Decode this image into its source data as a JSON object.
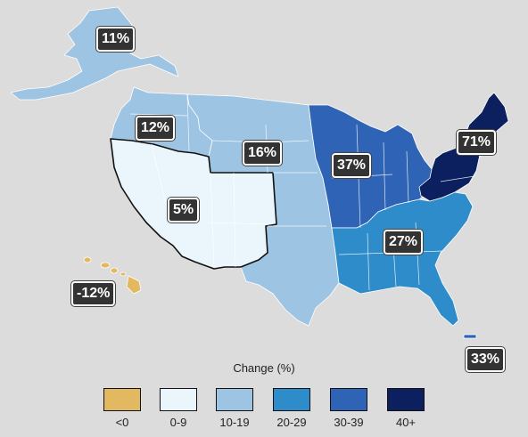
{
  "map": {
    "regions": [
      {
        "id": "alaska",
        "change_label": "11%",
        "color": "#9ec4e4"
      },
      {
        "id": "northwest",
        "change_label": "12%",
        "color": "#9ec4e4"
      },
      {
        "id": "great-plains",
        "change_label": "16%",
        "color": "#9ec4e4"
      },
      {
        "id": "southwest",
        "change_label": "5%",
        "color": "#eaf6fc"
      },
      {
        "id": "midwest",
        "change_label": "37%",
        "color": "#2f63b5"
      },
      {
        "id": "northeast",
        "change_label": "71%",
        "color": "#0c1f5e"
      },
      {
        "id": "southeast",
        "change_label": "27%",
        "color": "#2e8ccb"
      },
      {
        "id": "hawaii",
        "change_label": "-12%",
        "color": "#e2b860"
      },
      {
        "id": "puerto-rico",
        "change_label": "33%",
        "color": "#2f63b5"
      }
    ]
  },
  "legend": {
    "title": "Change (%)",
    "items": [
      {
        "label": "<0",
        "color": "#e2b860"
      },
      {
        "label": "0-9",
        "color": "#eaf6fc"
      },
      {
        "label": "10-19",
        "color": "#9ec4e4"
      },
      {
        "label": "20-29",
        "color": "#2e8ccb"
      },
      {
        "label": "30-39",
        "color": "#2f63b5"
      },
      {
        "label": "40+",
        "color": "#0c1f5e"
      }
    ]
  }
}
